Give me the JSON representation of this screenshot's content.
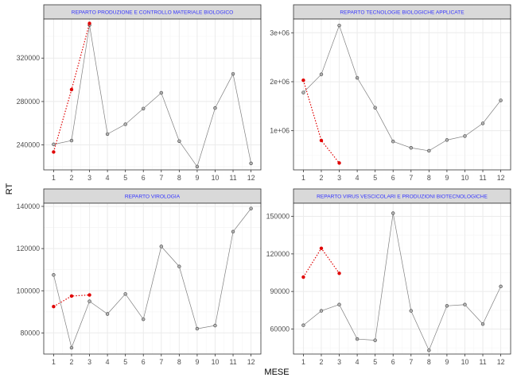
{
  "chart_data": {
    "type": "line",
    "xlabel": "MESE",
    "ylabel": "RT",
    "colors": {
      "series_current": "#e00000",
      "series_previous": "#7f7f7f",
      "strip_text": "#3333ff"
    },
    "panels": [
      {
        "title": "REPARTO PRODUZIONE E CONTROLLO MATERIALE BIOLOGICO",
        "ylim": [
          217000,
          356000
        ],
        "yticks": [
          240000,
          280000,
          320000
        ],
        "ytick_labels": [
          "240000",
          "280000",
          "320000"
        ],
        "x": [
          1,
          2,
          3,
          4,
          5,
          6,
          7,
          8,
          9,
          10,
          11,
          12
        ],
        "series": [
          {
            "values": [
              240500,
              244000,
              350500,
              250000,
              259000,
              273500,
              288000,
              243500,
              220000,
              274000,
              305500,
              223000
            ]
          },
          {
            "values": [
              233500,
              291000,
              352000
            ]
          }
        ]
      },
      {
        "title": "REPARTO TECNOLOGIE BIOLOGICHE APPLICATE",
        "ylim": [
          200000,
          3280000
        ],
        "yticks": [
          1000000,
          2000000,
          3000000
        ],
        "ytick_labels": [
          "1e+06",
          "2e+06",
          "3e+06"
        ],
        "x": [
          1,
          2,
          3,
          4,
          5,
          6,
          7,
          8,
          9,
          10,
          11,
          12
        ],
        "series": [
          {
            "values": [
              1780000,
              2150000,
              3150000,
              2080000,
              1470000,
              780000,
              650000,
              590000,
              810000,
              890000,
              1150000,
              1620000
            ]
          },
          {
            "values": [
              2030000,
              800000,
              340000
            ]
          }
        ]
      },
      {
        "title": "REPARTO VIROLOGIA",
        "ylim": [
          70000,
          141500
        ],
        "yticks": [
          80000,
          100000,
          120000,
          140000
        ],
        "ytick_labels": [
          "80000",
          "100000",
          "120000",
          "140000"
        ],
        "x": [
          1,
          2,
          3,
          4,
          5,
          6,
          7,
          8,
          9,
          10,
          11,
          12
        ],
        "series": [
          {
            "values": [
              107500,
              73000,
              95000,
              89000,
              98500,
              86500,
              121000,
              111500,
              82000,
              83500,
              128000,
              139000
            ]
          },
          {
            "values": [
              92500,
              97500,
              98000
            ]
          }
        ]
      },
      {
        "title": "REPARTO VIRUS VESCICOLARI E PRODUZIONI BIOTECNOLOGICHE",
        "ylim": [
          40000,
          160500
        ],
        "yticks": [
          60000,
          90000,
          120000,
          150000
        ],
        "ytick_labels": [
          "60000",
          "90000",
          "120000",
          "150000"
        ],
        "x": [
          1,
          2,
          3,
          4,
          5,
          6,
          7,
          8,
          9,
          10,
          11,
          12
        ],
        "series": [
          {
            "values": [
              63000,
              74500,
              79500,
              52000,
              51000,
              152500,
              74500,
              43000,
              78500,
              79500,
              64000,
              94000
            ]
          },
          {
            "values": [
              101500,
              124500,
              104500
            ]
          }
        ]
      }
    ]
  }
}
